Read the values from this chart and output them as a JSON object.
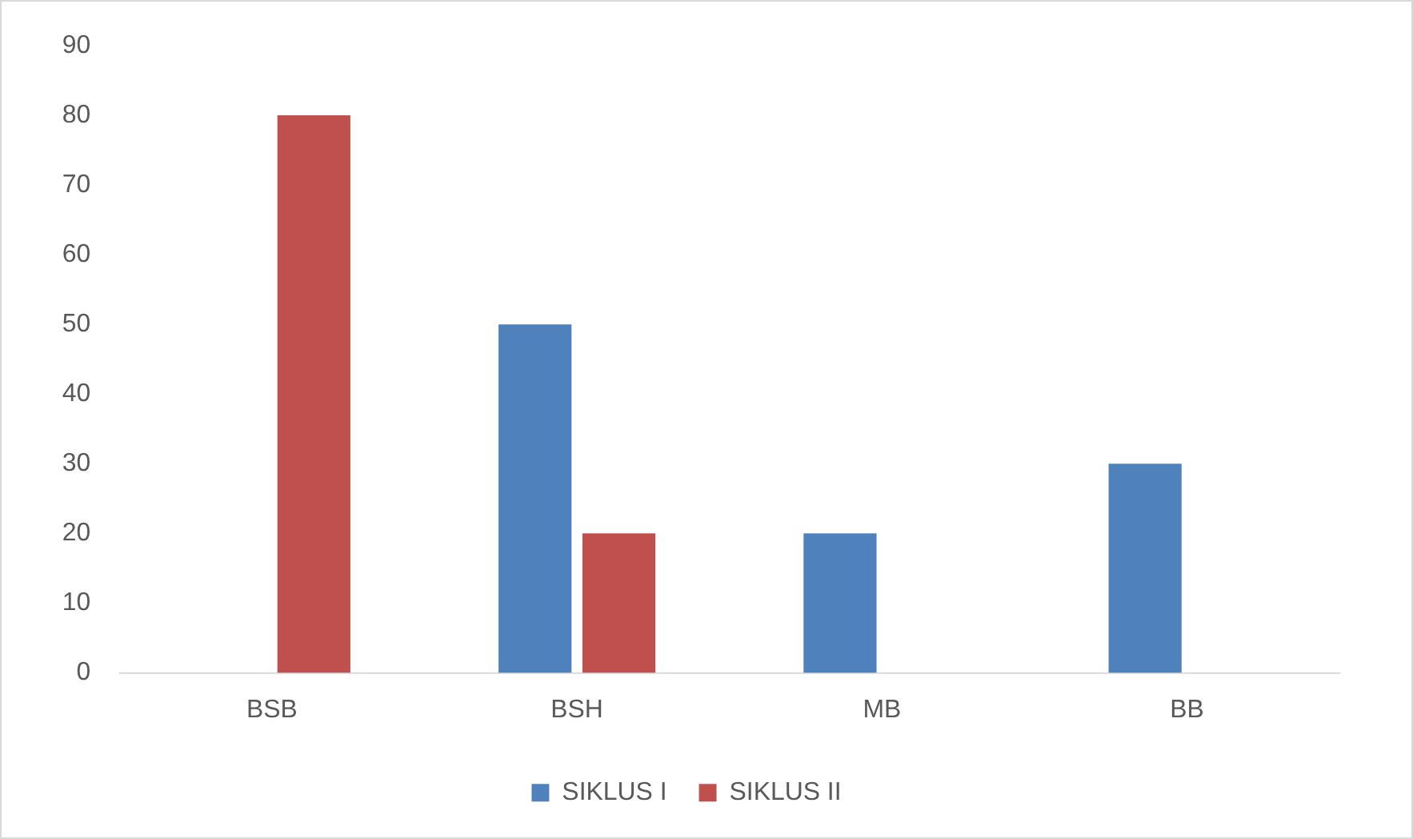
{
  "chart_data": {
    "type": "bar",
    "categories": [
      "BSB",
      "BSH",
      "MB",
      "BB"
    ],
    "series": [
      {
        "name": "SIKLUS I",
        "color": "#4f81bd",
        "values": [
          0,
          50,
          20,
          30
        ]
      },
      {
        "name": "SIKLUS II",
        "color": "#c0504d",
        "values": [
          80,
          20,
          0,
          0
        ]
      }
    ],
    "ylim": [
      0,
      90
    ],
    "yticks": [
      0,
      10,
      20,
      30,
      40,
      50,
      60,
      70,
      80,
      90
    ],
    "grid": false,
    "legend": "bottom"
  }
}
